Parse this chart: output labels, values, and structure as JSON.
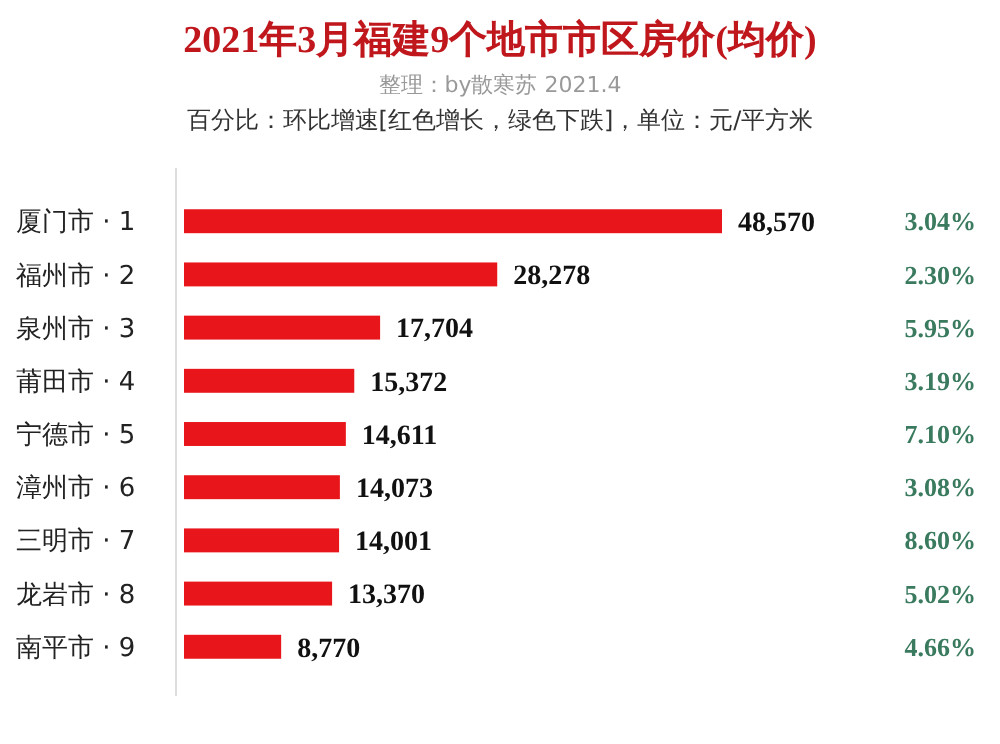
{
  "chart_data": {
    "type": "bar",
    "orientation": "horizontal",
    "title": "2021年3月福建9个地市市区房价(均价)",
    "subtitle": "整理：by散寒苏 2021.4",
    "categories": [
      "厦门市 · 1",
      "福州市 · 2",
      "泉州市 · 3",
      "莆田市 · 4",
      "宁德市 · 5",
      "漳州市 · 6",
      "三明市 · 7",
      "龙岩市 · 8",
      "南平市 · 9"
    ],
    "values": [
      48570,
      28278,
      17704,
      15372,
      14611,
      14073,
      14001,
      13370,
      8770
    ],
    "value_labels": [
      "48,570",
      "28,278",
      "17,704",
      "15,372",
      "14,611",
      "14,073",
      "14,001",
      "13,370",
      "8,770"
    ],
    "color": "#e8161b",
    "tick_labels": "y",
    "annotations": [
      "百分比：环比增速[红色增长，绿色下跌]，单位：元/平方米",
      "3.04%",
      "2.30%",
      "5.95%",
      "3.19%",
      "7.10%",
      "3.08%",
      "8.60%",
      "5.02%",
      "4.66%"
    ]
  }
}
